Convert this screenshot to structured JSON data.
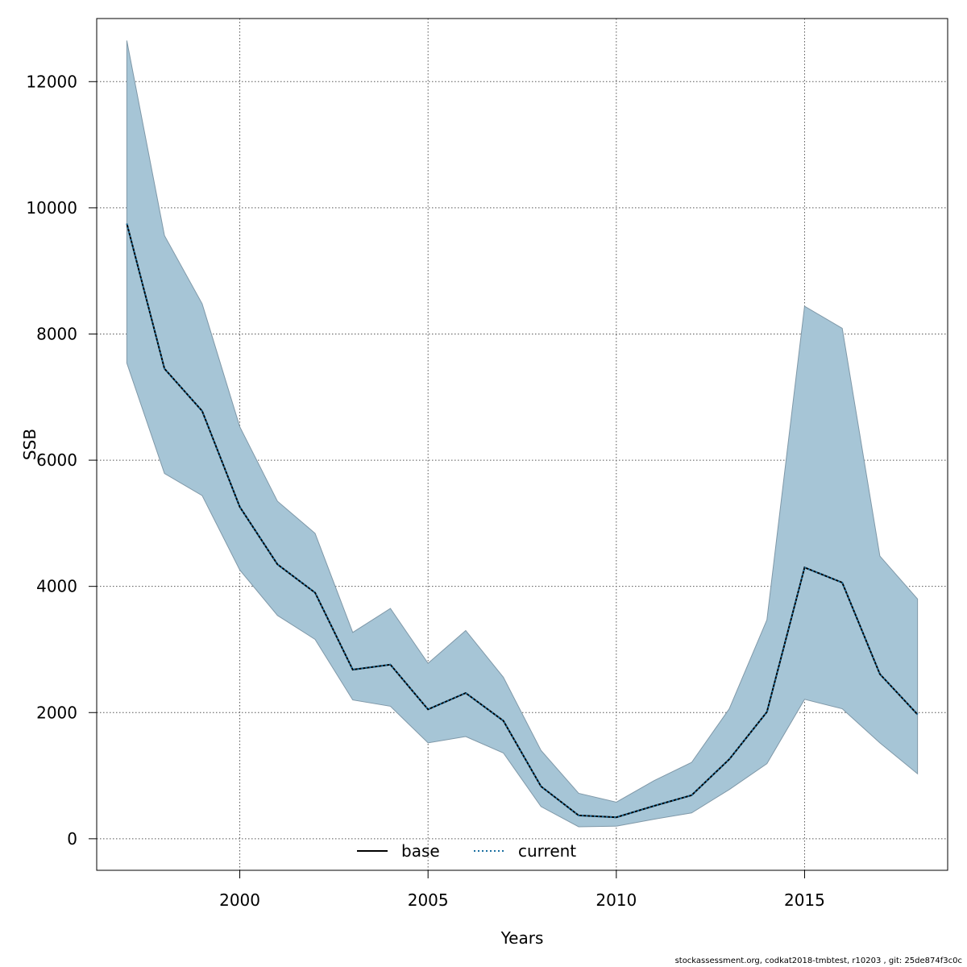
{
  "chart_data": {
    "type": "area",
    "xlabel": "Years",
    "ylabel": "SSB",
    "xlim": [
      1996.2,
      2018.8
    ],
    "ylim": [
      -500,
      13000
    ],
    "xticks": [
      2000,
      2005,
      2010,
      2015
    ],
    "yticks": [
      0,
      2000,
      4000,
      6000,
      8000,
      10000,
      12000
    ],
    "grid": true,
    "legend_position": "bottom-center",
    "x": [
      1997,
      1998,
      1999,
      2000,
      2001,
      2002,
      2003,
      2004,
      2005,
      2006,
      2007,
      2008,
      2009,
      2010,
      2011,
      2012,
      2013,
      2014,
      2015,
      2016,
      2017,
      2018
    ],
    "band": {
      "color": "#a6c5d6",
      "edge_color": "#7f98a8",
      "upper": [
        12650,
        9560,
        8480,
        6530,
        5350,
        4840,
        3270,
        3650,
        2780,
        3300,
        2560,
        1400,
        720,
        580,
        920,
        1210,
        2060,
        3470,
        8440,
        8090,
        4480,
        3800
      ],
      "lower": [
        7540,
        5790,
        5440,
        4260,
        3540,
        3160,
        2200,
        2100,
        1520,
        1620,
        1360,
        510,
        190,
        200,
        310,
        410,
        780,
        1190,
        2210,
        2060,
        1520,
        1030
      ]
    },
    "series": [
      {
        "name": "base",
        "style": "solid",
        "color": "#000000",
        "values": [
          9750,
          7450,
          6780,
          5260,
          4350,
          3900,
          2680,
          2760,
          2050,
          2310,
          1870,
          830,
          370,
          340,
          520,
          690,
          1260,
          2010,
          4300,
          4060,
          2610,
          1970
        ]
      },
      {
        "name": "current",
        "style": "dotted",
        "color": "#1a6fa0",
        "values": [
          9750,
          7450,
          6780,
          5260,
          4350,
          3900,
          2680,
          2760,
          2050,
          2310,
          1870,
          830,
          370,
          340,
          520,
          690,
          1260,
          2010,
          4300,
          4060,
          2610,
          1970
        ]
      }
    ]
  },
  "footer": "stockassessment.org, codkat2018-tmbtest, r10203 , git: 25de874f3c0c"
}
